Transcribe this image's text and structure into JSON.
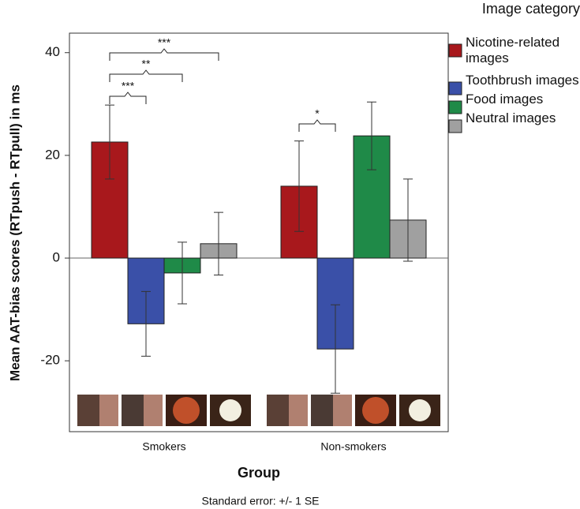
{
  "chart_data": {
    "type": "bar",
    "y_label": "Mean AAT-bias scores (RTpush - RTpull) in ms",
    "x_label": "Group",
    "legend_title": "Image category",
    "footnote": "Standard error: +/- 1 SE",
    "categories": [
      "Smokers",
      "Non-smokers"
    ],
    "series": [
      {
        "name": "Nicotine-related images",
        "color": "#a8181c",
        "values": [
          22.6,
          14.0
        ],
        "errors": [
          7.2,
          8.8
        ]
      },
      {
        "name": "Toothbrush images",
        "color": "#3a50a8",
        "values": [
          -12.8,
          -17.7
        ],
        "errors": [
          6.3,
          8.6
        ]
      },
      {
        "name": "Food images",
        "color": "#1f8a48",
        "values": [
          -2.9,
          23.8
        ],
        "errors": [
          6.0,
          6.6
        ]
      },
      {
        "name": "Neutral images",
        "color": "#a0a0a0",
        "values": [
          2.8,
          7.4
        ],
        "errors": [
          6.1,
          8.0
        ]
      }
    ],
    "annotations": [
      "***",
      "**",
      "***",
      "*"
    ],
    "ylim": [
      -33.8,
      43.8
    ],
    "yticks": [
      -20,
      0,
      20,
      40
    ],
    "legend": "right"
  }
}
